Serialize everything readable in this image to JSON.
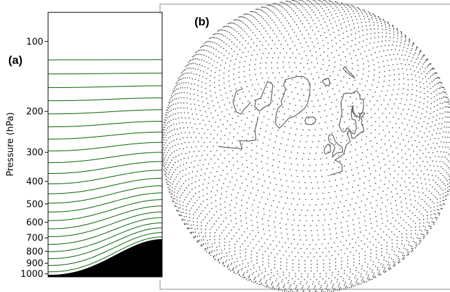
{
  "panel_a": {
    "label": "(a)",
    "ylabel": "Pressure (hPa)",
    "ticks": [
      100,
      200,
      300,
      400,
      500,
      600,
      700,
      800,
      900,
      1000
    ],
    "p_top": 75,
    "p_bottom": 1030,
    "y_scale": "log",
    "level_color": "#006400",
    "terrain_color": "#000000",
    "surface_pressure": {
      "left": 1005,
      "right": 705
    },
    "top_levels": [
      120,
      138,
      158,
      180,
      205,
      233,
      263,
      296,
      332,
      370,
      410,
      452,
      496,
      542,
      590,
      640,
      692,
      746,
      802,
      860,
      920,
      980
    ]
  },
  "panel_b": {
    "label": "(b)",
    "projection": "orthographic",
    "view": "north-polar",
    "grid_dot_color": "#555555",
    "coastline_color": "#555555"
  }
}
